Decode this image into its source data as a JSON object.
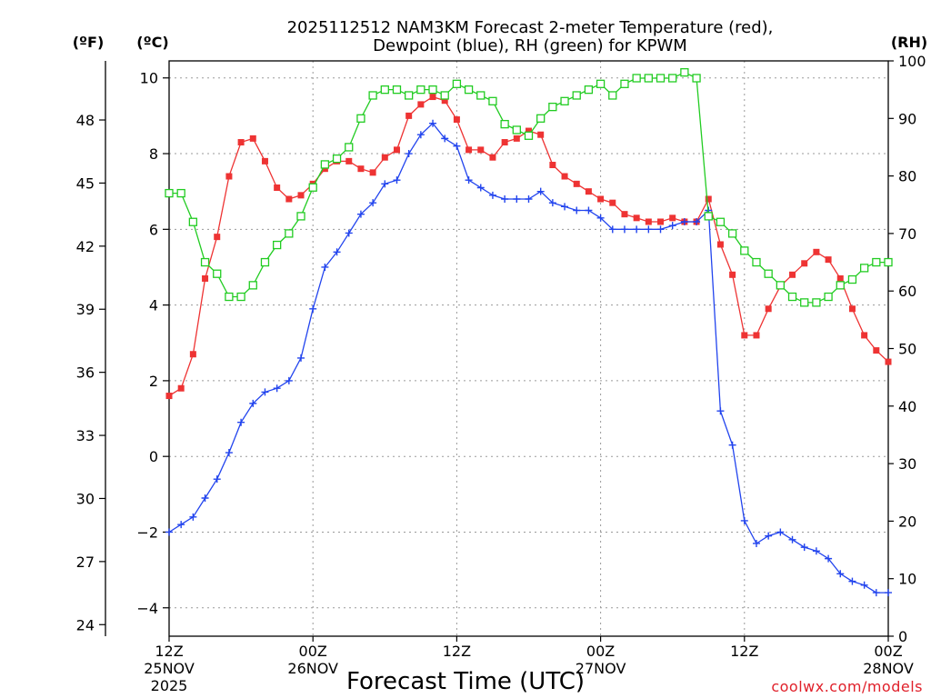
{
  "chart_data": {
    "type": "line",
    "title_line1": "2025112512 NAM3KM Forecast 2-meter Temperature (red),",
    "title_line2": "Dewpoint (blue), RH (green) for KPWM",
    "xlabel": "Forecast Time (UTC)",
    "credit": "coolwx.com/models",
    "units": {
      "fahrenheit": "(ºF)",
      "celsius": "(ºC)",
      "rh": "(RH)"
    },
    "x_range_hours": [
      0,
      60
    ],
    "y_range_c": [
      -4.75,
      10.45
    ],
    "y_range_rh": [
      0,
      100
    ],
    "fahrenheit_ticks": [
      "24",
      "27",
      "30",
      "33",
      "36",
      "39",
      "42",
      "45",
      "48"
    ],
    "celsius_ticks": [
      "−4",
      "−2",
      "0",
      "2",
      "4",
      "6",
      "8",
      "10"
    ],
    "rh_ticks": [
      "0",
      "10",
      "20",
      "30",
      "40",
      "50",
      "60",
      "70",
      "80",
      "90",
      "100"
    ],
    "x_ticks": [
      {
        "hour": 0,
        "label": "12Z",
        "date": "25NOV",
        "year": "2025"
      },
      {
        "hour": 12,
        "label": "00Z",
        "date": "26NOV",
        "year": ""
      },
      {
        "hour": 24,
        "label": "12Z",
        "date": "",
        "year": ""
      },
      {
        "hour": 36,
        "label": "00Z",
        "date": "27NOV",
        "year": ""
      },
      {
        "hour": 48,
        "label": "12Z",
        "date": "",
        "year": ""
      },
      {
        "hour": 60,
        "label": "00Z",
        "date": "28NOV",
        "year": ""
      }
    ],
    "series": [
      {
        "name": "Temperature",
        "color": "#ee3333",
        "units": "C",
        "marker": "filled-square",
        "values": [
          1.6,
          1.8,
          2.7,
          4.7,
          5.8,
          7.4,
          8.3,
          8.4,
          7.8,
          7.1,
          6.8,
          6.9,
          7.2,
          7.6,
          7.8,
          7.8,
          7.6,
          7.5,
          7.9,
          8.1,
          9.0,
          9.3,
          9.5,
          9.4,
          8.9,
          8.1,
          8.1,
          7.9,
          8.3,
          8.4,
          8.6,
          8.5,
          7.7,
          7.4,
          7.2,
          7.0,
          6.8,
          6.7,
          6.4,
          6.3,
          6.2,
          6.2,
          6.3,
          6.2,
          6.2,
          6.8,
          5.6,
          4.8,
          3.2,
          3.2,
          3.9,
          4.5,
          4.8,
          5.1,
          5.4,
          5.2,
          4.7,
          3.9,
          3.2,
          2.8,
          2.5
        ]
      },
      {
        "name": "Dewpoint",
        "color": "#2244ee",
        "units": "C",
        "marker": "plus",
        "values": [
          -2.0,
          -1.8,
          -1.6,
          -1.1,
          -0.6,
          0.1,
          0.9,
          1.4,
          1.7,
          1.8,
          2.0,
          2.6,
          3.9,
          5.0,
          5.4,
          5.9,
          6.4,
          6.7,
          7.2,
          7.3,
          8.0,
          8.5,
          8.8,
          8.4,
          8.2,
          7.3,
          7.1,
          6.9,
          6.8,
          6.8,
          6.8,
          7.0,
          6.7,
          6.6,
          6.5,
          6.5,
          6.3,
          6.0,
          6.0,
          6.0,
          6.0,
          6.0,
          6.1,
          6.2,
          6.2,
          6.5,
          1.2,
          0.3,
          -1.7,
          -2.3,
          -2.1,
          -2.0,
          -2.2,
          -2.4,
          -2.5,
          -2.7,
          -3.1,
          -3.3,
          -3.4,
          -3.6,
          -3.6
        ]
      },
      {
        "name": "RH",
        "color": "#22cc22",
        "units": "%",
        "marker": "open-square",
        "values": [
          77,
          77,
          72,
          65,
          63,
          59,
          59,
          61,
          65,
          68,
          70,
          73,
          78,
          82,
          83,
          85,
          90,
          94,
          95,
          95,
          94,
          95,
          95,
          94,
          96,
          95,
          94,
          93,
          89,
          88,
          87,
          90,
          92,
          93,
          94,
          95,
          96,
          94,
          96,
          97,
          97,
          97,
          97,
          98,
          97,
          73,
          72,
          70,
          67,
          65,
          63,
          61,
          59,
          58,
          58,
          59,
          61,
          62,
          64,
          65,
          65
        ]
      }
    ]
  }
}
